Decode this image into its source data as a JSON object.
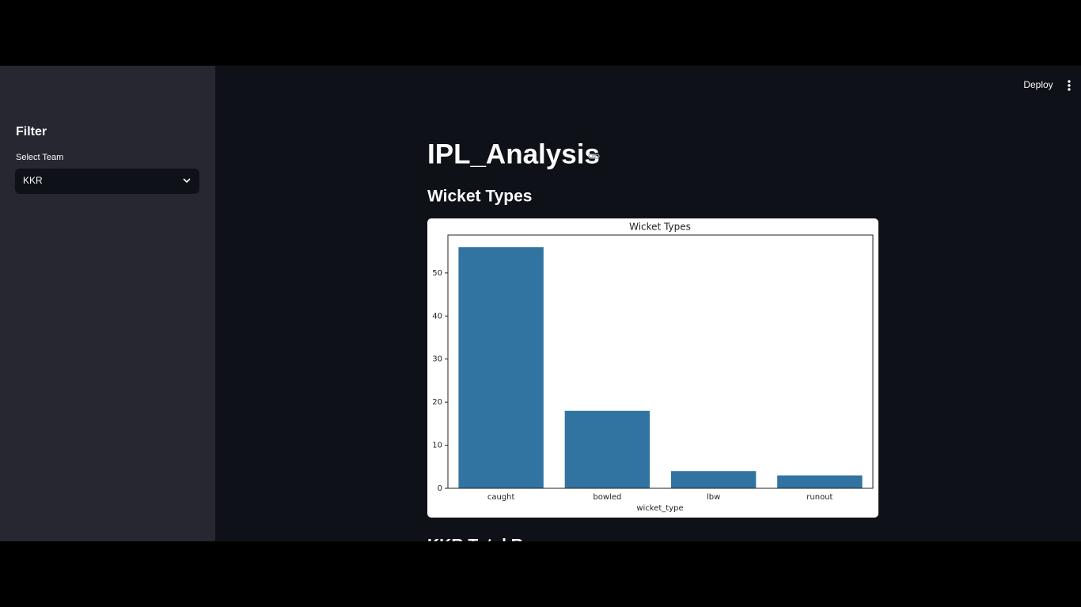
{
  "toolbar": {
    "deploy": "Deploy"
  },
  "sidebar": {
    "title": "Filter",
    "select_label": "Select Team",
    "select_value": "KKR"
  },
  "main": {
    "title": "IPL_Analysis",
    "section": "Wicket Types",
    "next_section": "KKR Total Runs"
  },
  "chart_data": {
    "type": "bar",
    "title": "Wicket Types",
    "x_label": "wicket_type",
    "categories": [
      "caught",
      "bowled",
      "lbw",
      "runout"
    ],
    "values": [
      56,
      18,
      4,
      3
    ],
    "color": "#3274a1",
    "ylim": [
      0,
      58.8
    ],
    "yticks": [
      0,
      10,
      20,
      30,
      40,
      50
    ]
  }
}
